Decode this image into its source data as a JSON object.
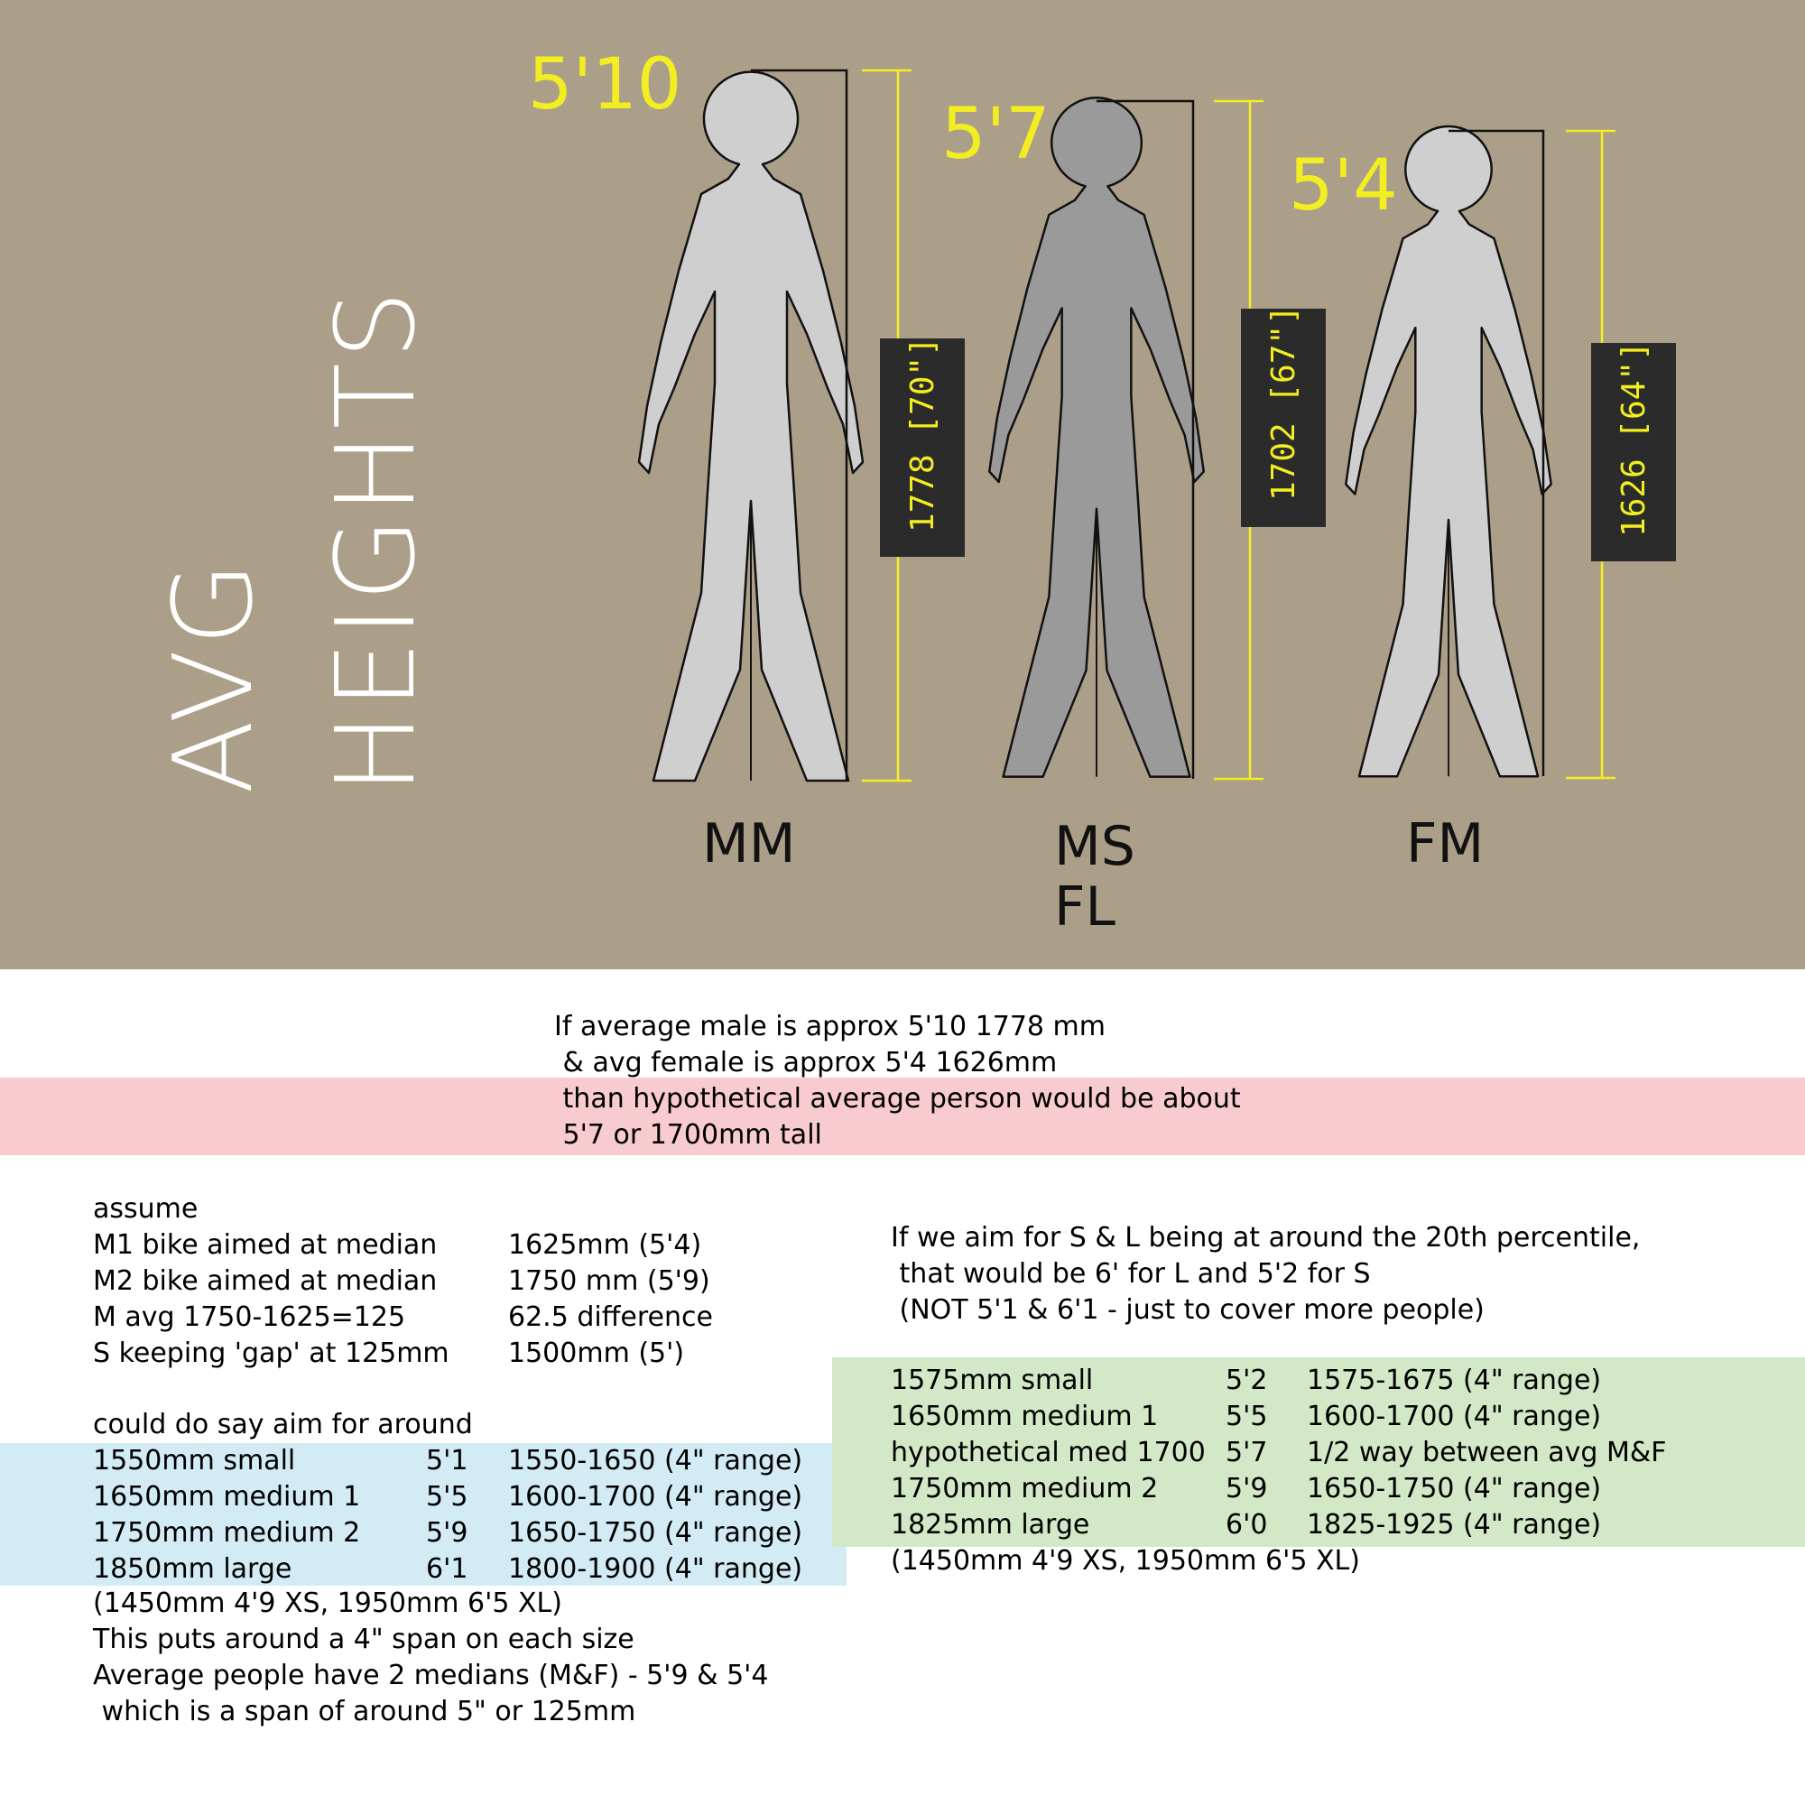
{
  "colors": {
    "panel": "#ac9f89",
    "figure_light": "#cfcfcf",
    "figure_dark": "#9a9a9a",
    "outline": "#111111",
    "yellow": "#f2ee22",
    "dim_box": "#2b2b2b",
    "pink_band": "#f8cbd0",
    "blue_band": "#d3ebf4",
    "green_band": "#d2e8c6",
    "white_title": "#ffffff"
  },
  "title": {
    "line1": "AVG",
    "line2": "HEIGHTS"
  },
  "figures": [
    {
      "id": "MM",
      "height_ft": "5'10",
      "dim_label": "1778  [70\"]",
      "label_lines": [
        "MM"
      ]
    },
    {
      "id": "MSFL",
      "height_ft": "5'7",
      "dim_label": "1702  [67\"]",
      "label_lines": [
        "MS",
        "FL"
      ]
    },
    {
      "id": "FM",
      "height_ft": "5'4",
      "dim_label": "1626  [64\"]",
      "label_lines": [
        "FM"
      ]
    }
  ],
  "intro": {
    "line1": "If average male is approx 5'10 1778 mm",
    "line2": " & avg female is approx 5'4 1626mm",
    "line3": " than hypothetical average person would be about",
    "line4": " 5'7 or 1700mm tall"
  },
  "assume": {
    "heading": "assume",
    "rows": [
      {
        "left": "M1 bike aimed at median",
        "right": "1625mm (5'4)"
      },
      {
        "left": "M2 bike aimed at median",
        "right": "1750 mm (5'9)"
      },
      {
        "left": "M avg 1750-1625=125",
        "right": "62.5 difference"
      },
      {
        "left": "S keeping 'gap' at 125mm",
        "right": "1500mm (5')"
      }
    ]
  },
  "plan_a": {
    "heading": "could do say aim for around",
    "rows": [
      {
        "size": "1550mm small",
        "ft": "5'1",
        "range": "1550-1650 (4\" range)"
      },
      {
        "size": "1650mm medium 1",
        "ft": "5'5",
        "range": "1600-1700 (4\" range)"
      },
      {
        "size": "1750mm medium 2",
        "ft": "5'9",
        "range": "1650-1750 (4\" range)"
      },
      {
        "size": "1850mm large",
        "ft": "6'1",
        "range": "1800-1900 (4\" range)"
      }
    ],
    "notes": [
      "(1450mm 4'9 XS, 1950mm 6'5 XL)",
      "This puts around a 4\" span on each size",
      "Average people have 2 medians (M&F) - 5'9 & 5'4",
      " which is a span of around 5\" or 125mm"
    ]
  },
  "plan_b": {
    "intro": [
      "If we aim for S & L being at around the 20th percentile,",
      " that would be 6' for L and 5'2 for S",
      " (NOT 5'1 & 6'1 - just to cover more people)"
    ],
    "rows": [
      {
        "size": "1575mm small",
        "ft": "5'2",
        "range": "1575-1675 (4\" range)"
      },
      {
        "size": "1650mm medium 1",
        "ft": "5'5",
        "range": "1600-1700 (4\" range)"
      },
      {
        "size": "hypothetical med 1700",
        "ft": "5'7",
        "range": "1/2 way between avg M&F"
      },
      {
        "size": "1750mm medium 2",
        "ft": "5'9",
        "range": "1650-1750 (4\" range)"
      },
      {
        "size": "1825mm large",
        "ft": "6'0",
        "range": "1825-1925 (4\" range)"
      }
    ],
    "note": "(1450mm 4'9 XS, 1950mm 6'5 XL)"
  }
}
